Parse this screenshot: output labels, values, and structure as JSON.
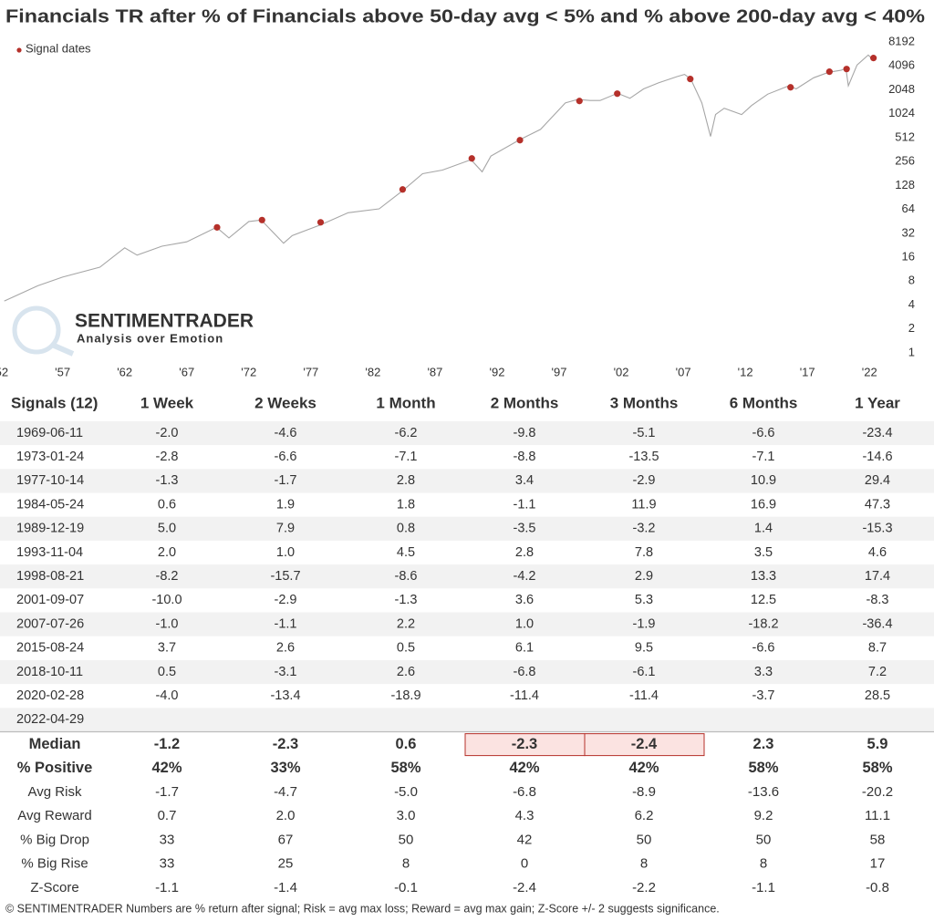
{
  "chart_data": {
    "type": "line",
    "title": "Financials TR after % of Financials above 50-day avg < 5% and % above 200-day avg < 40%",
    "x": [
      1952.3,
      1955,
      1957,
      1960,
      1962,
      1963,
      1965,
      1967,
      1969.4,
      1970.4,
      1972,
      1973,
      1974.8,
      1975.5,
      1977.8,
      1980,
      1982.5,
      1984.4,
      1986,
      1987.6,
      1989.9,
      1990.8,
      1991.5,
      1993.8,
      1995.5,
      1997.5,
      1998.5,
      1999.5,
      2000.3,
      2001.7,
      2002.7,
      2003.8,
      2005,
      2006.5,
      2007.1,
      2007.6,
      2008.5,
      2009.2,
      2009.6,
      2010.3,
      2011.7,
      2012.5,
      2013.8,
      2015.5,
      2016.1,
      2017.5,
      2018.7,
      2019.7,
      2020.1,
      2020.3,
      2021,
      2021.9,
      2022.35
    ],
    "values": [
      4.5,
      7,
      9,
      12,
      21,
      17,
      22,
      25,
      38,
      28,
      45,
      47,
      24,
      30,
      41,
      58,
      65,
      110,
      180,
      200,
      270,
      190,
      300,
      480,
      650,
      1400,
      1550,
      1500,
      1500,
      1850,
      1600,
      2100,
      2500,
      3000,
      3200,
      2800,
      1400,
      530,
      1000,
      1200,
      1000,
      1300,
      1800,
      2300,
      2100,
      2900,
      3400,
      3600,
      3800,
      2300,
      4200,
      5600,
      4800
    ],
    "color": "#a6a6a6",
    "signals": {
      "name": "Signal dates",
      "color": "#b5302a",
      "x": [
        "1969-06-11",
        "1973-01-24",
        "1977-10-14",
        "1984-05-24",
        "1989-12-19",
        "1993-11-04",
        "1998-08-21",
        "2001-09-07",
        "2007-07-26",
        "2015-08-24",
        "2018-10-11",
        "2020-02-28",
        "2022-04-29"
      ],
      "values": [
        38,
        47,
        44,
        114,
        280,
        475,
        1480,
        1830,
        2800,
        2200,
        3460,
        3740,
        5140
      ]
    },
    "xlim": [
      1952.25,
      2022.35
    ],
    "xticks": [
      {
        "value": 1952,
        "label": "'52"
      },
      {
        "value": 1957,
        "label": "'57"
      },
      {
        "value": 1962,
        "label": "'62"
      },
      {
        "value": 1967,
        "label": "'67"
      },
      {
        "value": 1972,
        "label": "'72"
      },
      {
        "value": 1977,
        "label": "'77"
      },
      {
        "value": 1982,
        "label": "'82"
      },
      {
        "value": 1987,
        "label": "'87"
      },
      {
        "value": 1992,
        "label": "'92"
      },
      {
        "value": 1997,
        "label": "'97"
      },
      {
        "value": 2002,
        "label": "'02"
      },
      {
        "value": 2007,
        "label": "'07"
      },
      {
        "value": 2012,
        "label": "'12"
      },
      {
        "value": 2017,
        "label": "'17"
      },
      {
        "value": 2022,
        "label": "'22"
      }
    ],
    "ylim": [
      1,
      8192
    ],
    "yticks": [
      1,
      2,
      4,
      8,
      16,
      32,
      64,
      128,
      256,
      512,
      1024,
      2048,
      4096,
      8192
    ],
    "log_scale": true,
    "legend": "upper left",
    "watermark": {
      "brand": "SENTIMENTRADER",
      "tagline": "Analysis over Emotion"
    }
  },
  "table": {
    "columns": [
      "Signals (12)",
      "1 Week",
      "2 Weeks",
      "1 Month",
      "2 Months",
      "3 Months",
      "6 Months",
      "1 Year"
    ],
    "rows": [
      [
        "1969-06-11",
        "-2.0",
        "-4.6",
        "-6.2",
        "-9.8",
        "-5.1",
        "-6.6",
        "-23.4"
      ],
      [
        "1973-01-24",
        "-2.8",
        "-6.6",
        "-7.1",
        "-8.8",
        "-13.5",
        "-7.1",
        "-14.6"
      ],
      [
        "1977-10-14",
        "-1.3",
        "-1.7",
        "2.8",
        "3.4",
        "-2.9",
        "10.9",
        "29.4"
      ],
      [
        "1984-05-24",
        "0.6",
        "1.9",
        "1.8",
        "-1.1",
        "11.9",
        "16.9",
        "47.3"
      ],
      [
        "1989-12-19",
        "5.0",
        "7.9",
        "0.8",
        "-3.5",
        "-3.2",
        "1.4",
        "-15.3"
      ],
      [
        "1993-11-04",
        "2.0",
        "1.0",
        "4.5",
        "2.8",
        "7.8",
        "3.5",
        "4.6"
      ],
      [
        "1998-08-21",
        "-8.2",
        "-15.7",
        "-8.6",
        "-4.2",
        "2.9",
        "13.3",
        "17.4"
      ],
      [
        "2001-09-07",
        "-10.0",
        "-2.9",
        "-1.3",
        "3.6",
        "5.3",
        "12.5",
        "-8.3"
      ],
      [
        "2007-07-26",
        "-1.0",
        "-1.1",
        "2.2",
        "1.0",
        "-1.9",
        "-18.2",
        "-36.4"
      ],
      [
        "2015-08-24",
        "3.7",
        "2.6",
        "0.5",
        "6.1",
        "9.5",
        "-6.6",
        "8.7"
      ],
      [
        "2018-10-11",
        "0.5",
        "-3.1",
        "2.6",
        "-6.8",
        "-6.1",
        "3.3",
        "7.2"
      ],
      [
        "2020-02-28",
        "-4.0",
        "-13.4",
        "-18.9",
        "-11.4",
        "-11.4",
        "-3.7",
        "28.5"
      ],
      [
        "2022-04-29"
      ]
    ],
    "summary": [
      [
        "Median",
        "-1.2",
        "-2.3",
        "0.6",
        "-2.3",
        "-2.4",
        "2.3",
        "5.9"
      ],
      [
        "% Positive",
        "42%",
        "33%",
        "58%",
        "42%",
        "42%",
        "58%",
        "58%"
      ],
      [
        "Avg Risk",
        "-1.7",
        "-4.7",
        "-5.0",
        "-6.8",
        "-8.9",
        "-13.6",
        "-20.2"
      ],
      [
        "Avg Reward",
        "0.7",
        "2.0",
        "3.0",
        "4.3",
        "6.2",
        "9.2",
        "11.1"
      ],
      [
        "% Big Drop",
        "33",
        "67",
        "50",
        "42",
        "50",
        "50",
        "58"
      ],
      [
        "% Big Rise",
        "33",
        "25",
        "8",
        "0",
        "8",
        "8",
        "17"
      ],
      [
        "Z-Score",
        "-1.1",
        "-1.4",
        "-0.1",
        "-2.4",
        "-2.2",
        "-1.1",
        "-0.8"
      ]
    ],
    "bold_rows": [
      0,
      1
    ],
    "red_rows": [
      4
    ],
    "highlight": {
      "row": 0,
      "cols": [
        4,
        5
      ]
    },
    "negative_color": "#b5302a"
  },
  "footer": "© SENTIMENTRADER  Numbers are % return after signal; Risk = avg max loss; Reward = avg max gain; Z-Score +/- 2 suggests significance."
}
